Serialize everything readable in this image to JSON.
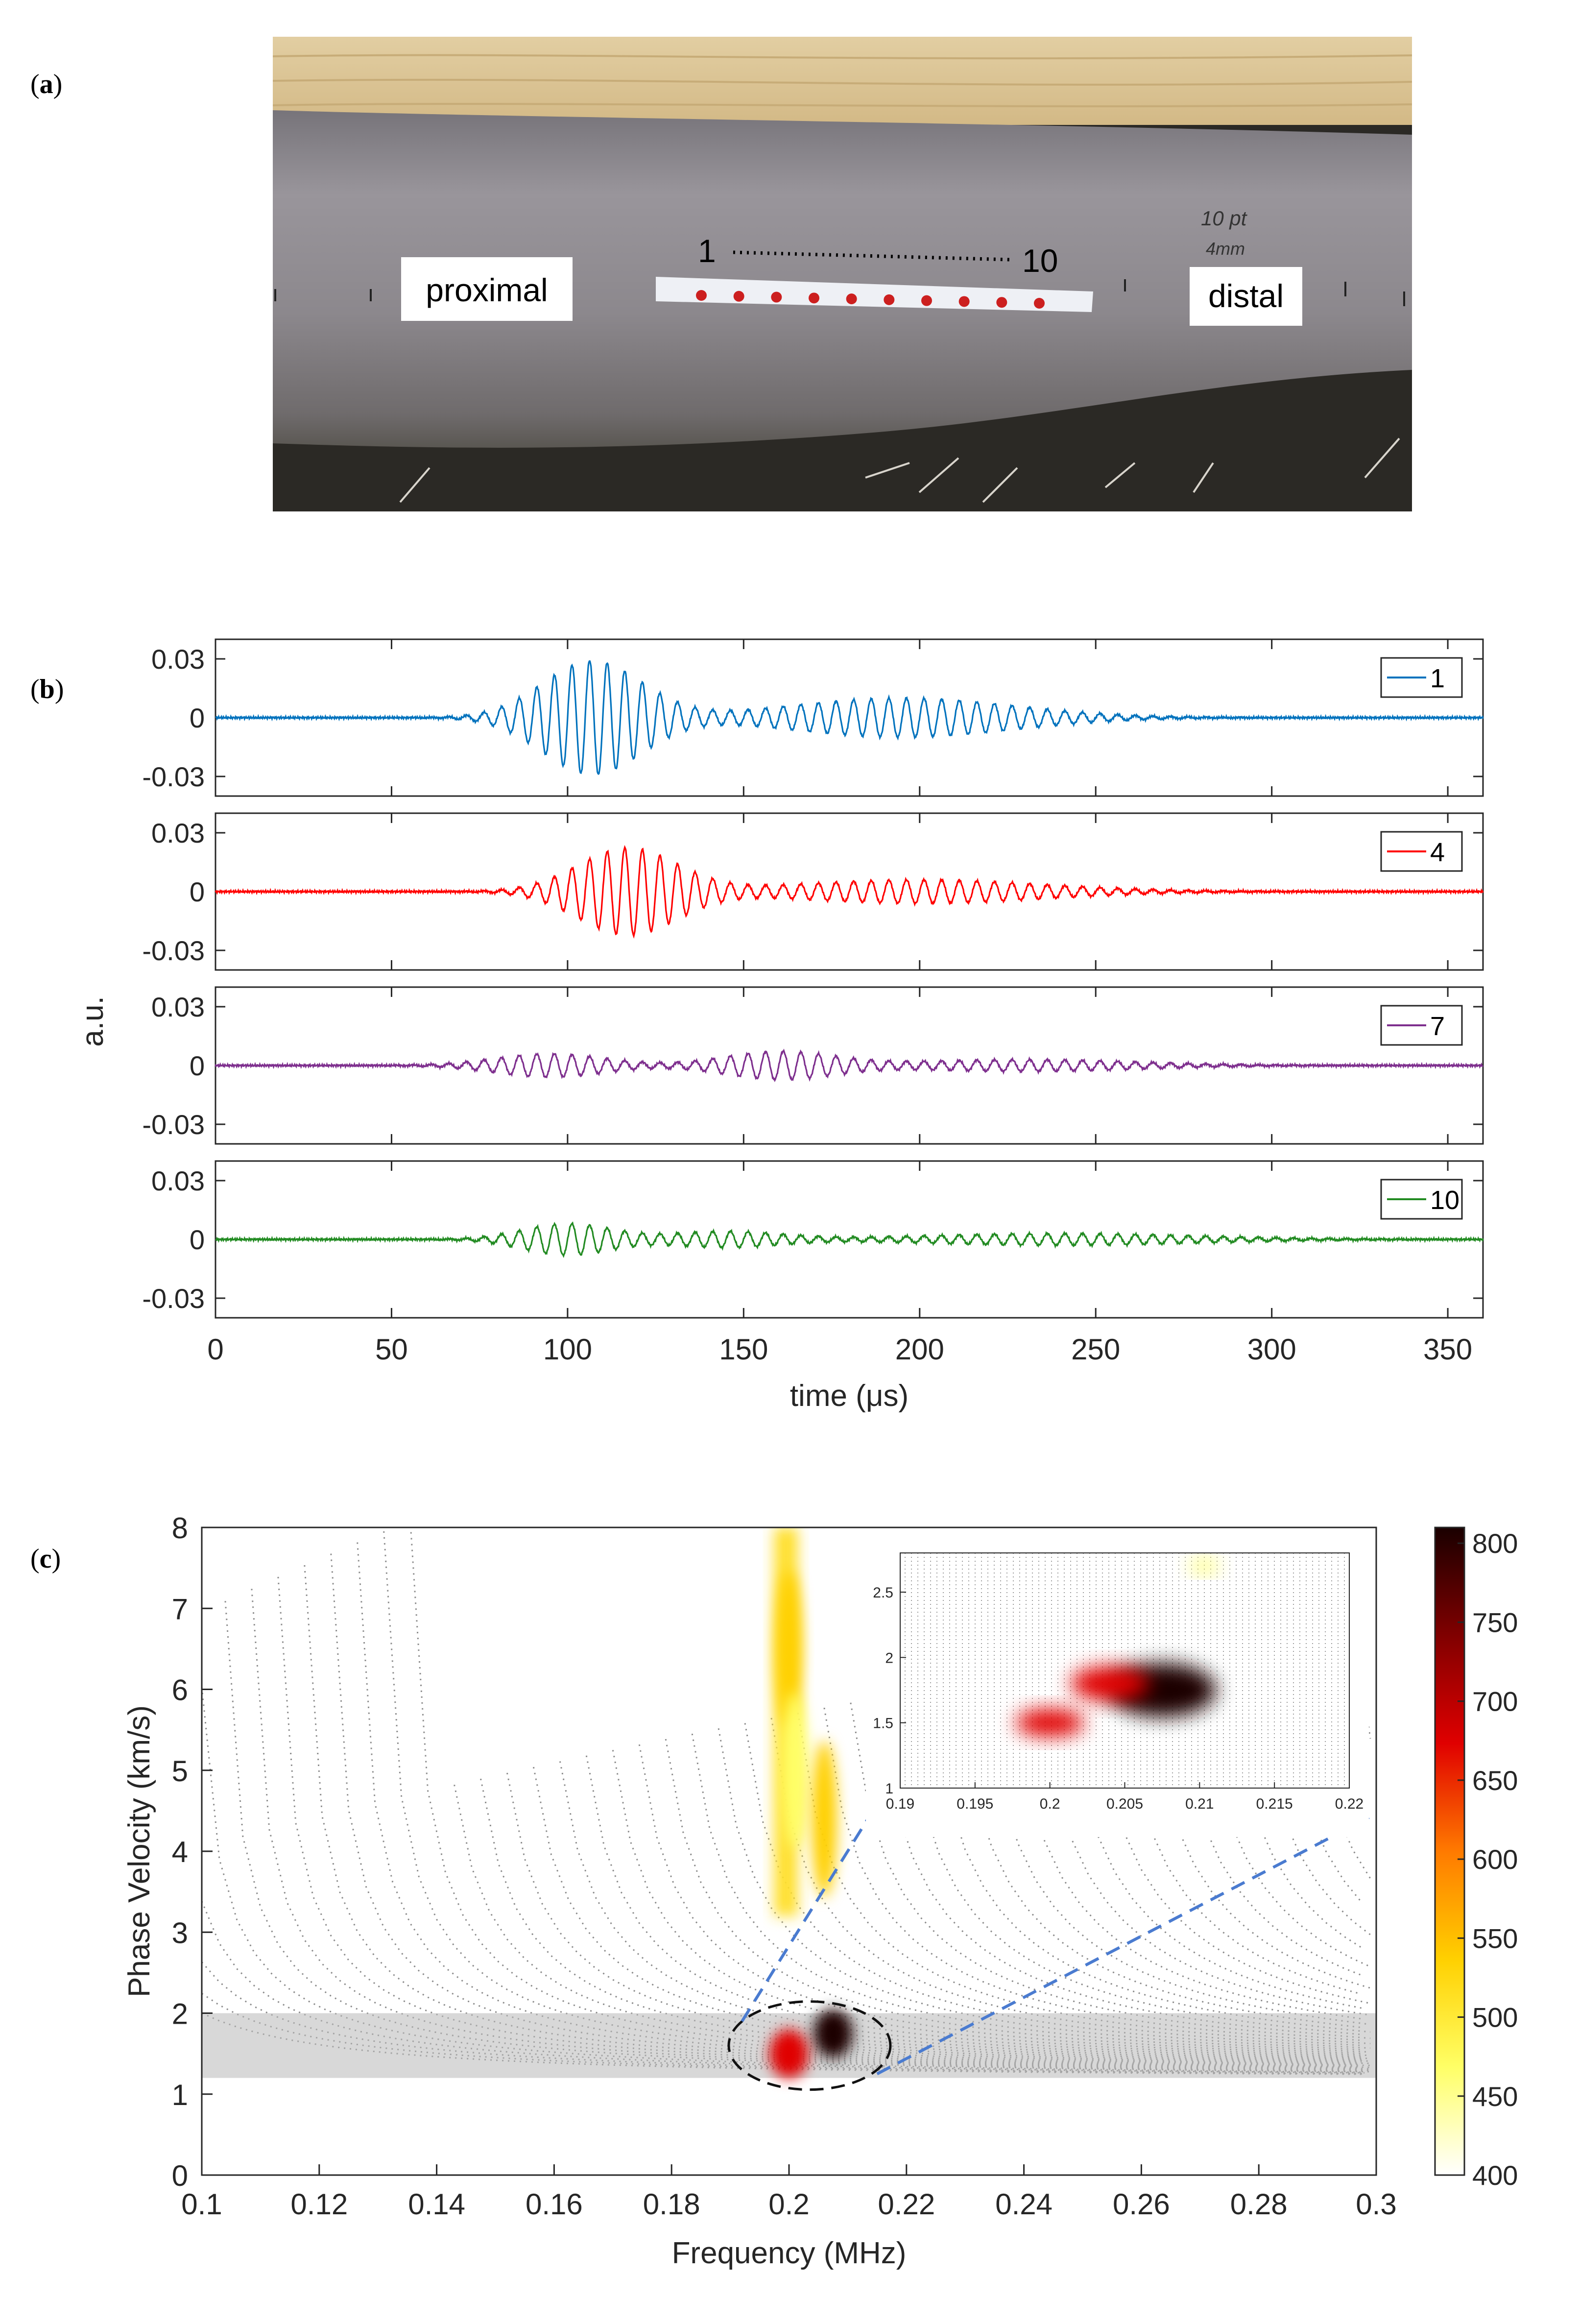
{
  "panels": {
    "a": {
      "label": "a"
    },
    "b": {
      "label": "b"
    },
    "c": {
      "label": "c"
    }
  },
  "photo": {
    "labels": {
      "proximal": "proximal",
      "distal": "distal",
      "start": "1",
      "end": "10"
    },
    "handwriting": [
      "10 pt",
      "4mm"
    ],
    "marker_count": 10,
    "colors": {
      "wood": "#dcc698",
      "tube": "#8f8b90",
      "dots": "#cc1f1f",
      "dark": "#2b2925"
    }
  },
  "chart_data": [
    {
      "type": "line",
      "panel": "b",
      "xlabel": "time (μs)",
      "ylabel": "a.u.",
      "xlim": [
        0,
        360
      ],
      "xticks": [
        0,
        50,
        100,
        150,
        200,
        250,
        300,
        350
      ],
      "ylim": [
        -0.04,
        0.04
      ],
      "yticks": [
        0.03,
        0,
        -0.03
      ],
      "ytick_labels": [
        "0.03",
        "0",
        "-0.03"
      ],
      "legend_position": "top-right",
      "series": [
        {
          "name": "1",
          "color": "#0072bd",
          "carrier_freq_mhz": 0.2,
          "packets": [
            {
              "center": 107,
              "width": 20,
              "amplitude": 0.029
            },
            {
              "center": 195,
              "width": 45,
              "amplitude": 0.01
            }
          ]
        },
        {
          "name": "4",
          "color": "#ff0000",
          "carrier_freq_mhz": 0.2,
          "packets": [
            {
              "center": 117,
              "width": 20,
              "amplitude": 0.022
            },
            {
              "center": 200,
              "width": 50,
              "amplitude": 0.006
            }
          ]
        },
        {
          "name": "7",
          "color": "#7e2f8e",
          "carrier_freq_mhz": 0.2,
          "packets": [
            {
              "center": 95,
              "width": 22,
              "amplitude": 0.006
            },
            {
              "center": 160,
              "width": 22,
              "amplitude": 0.007
            },
            {
              "center": 230,
              "width": 45,
              "amplitude": 0.003
            }
          ]
        },
        {
          "name": "10",
          "color": "#228b22",
          "carrier_freq_mhz": 0.2,
          "packets": [
            {
              "center": 100,
              "width": 18,
              "amplitude": 0.008
            },
            {
              "center": 145,
              "width": 22,
              "amplitude": 0.004
            },
            {
              "center": 240,
              "width": 55,
              "amplitude": 0.003
            }
          ]
        }
      ]
    },
    {
      "type": "heatmap",
      "panel": "c",
      "xlabel": "Frequency (MHz)",
      "ylabel": "Phase Velocity (km/s)",
      "xlim": [
        0.1,
        0.3
      ],
      "xticks": [
        0.1,
        0.12,
        0.14,
        0.16,
        0.18,
        0.2,
        0.22,
        0.24,
        0.26,
        0.28,
        0.3
      ],
      "ylim": [
        0,
        8
      ],
      "yticks": [
        0,
        1,
        2,
        3,
        4,
        5,
        6,
        7,
        8
      ],
      "colorbar": {
        "range": [
          400,
          810
        ],
        "ticks": [
          400,
          450,
          500,
          550,
          600,
          650,
          700,
          750,
          800
        ],
        "colors": [
          "#ffffff",
          "#ffff66",
          "#ffd000",
          "#ff7a00",
          "#e00000",
          "#800000",
          "#1a0000"
        ]
      },
      "dispersion_curves": {
        "color": "#8c8c8c",
        "v_floor": 1.2,
        "mode_count": 60
      },
      "energy_peaks": [
        {
          "x": 0.2,
          "y": 6.5,
          "value": 540
        },
        {
          "x": 0.201,
          "y": 5.0,
          "value": 480
        },
        {
          "x": 0.206,
          "y": 4.4,
          "value": 560
        },
        {
          "x": 0.2075,
          "y": 1.75,
          "value": 780
        },
        {
          "x": 0.2,
          "y": 1.5,
          "value": 680
        }
      ],
      "highlight_ellipse": {
        "x": 0.2035,
        "y": 1.6
      },
      "inset": {
        "xlim": [
          0.19,
          0.22
        ],
        "xticks": [
          0.19,
          0.195,
          0.2,
          0.205,
          0.21,
          0.215,
          0.22
        ],
        "ylim": [
          1,
          2.8
        ],
        "yticks": [
          1,
          1.5,
          2,
          2.5
        ],
        "peaks": [
          {
            "x": 0.2075,
            "y": 1.75,
            "value": 800
          },
          {
            "x": 0.2,
            "y": 1.5,
            "value": 690
          },
          {
            "x": 0.204,
            "y": 1.8,
            "value": 640
          },
          {
            "x": 0.2103,
            "y": 2.7,
            "value": 440
          }
        ]
      }
    }
  ]
}
